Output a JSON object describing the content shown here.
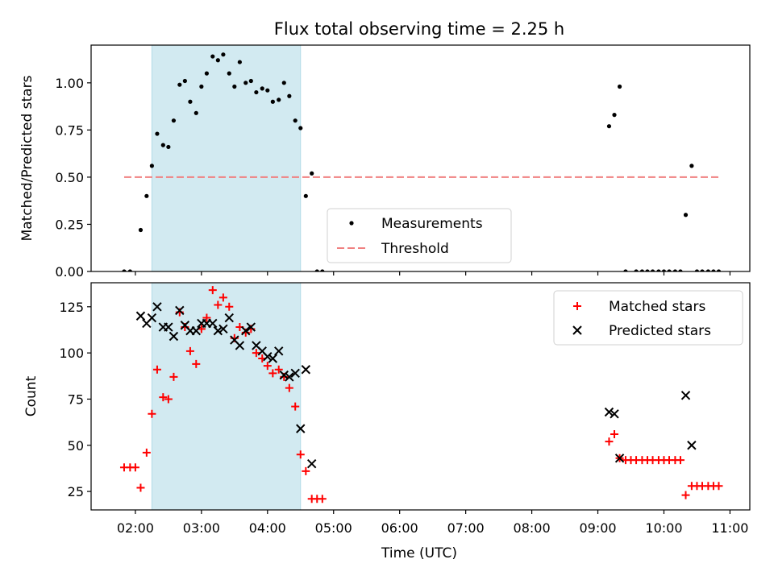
{
  "title": "Flux total observing time = 2.25 h",
  "x_ticks": [
    {
      "label": "02:00",
      "hour": 2
    },
    {
      "label": "03:00",
      "hour": 3
    },
    {
      "label": "04:00",
      "hour": 4
    },
    {
      "label": "05:00",
      "hour": 5
    },
    {
      "label": "06:00",
      "hour": 6
    },
    {
      "label": "07:00",
      "hour": 7
    },
    {
      "label": "08:00",
      "hour": 8
    },
    {
      "label": "09:00",
      "hour": 9
    },
    {
      "label": "10:00",
      "hour": 10
    },
    {
      "label": "11:00",
      "hour": 11
    }
  ],
  "xlabel": "Time (UTC)",
  "colors": {
    "measurement": "#000000",
    "threshold": "#f08080",
    "matched": "#ff0000",
    "predicted": "#000000",
    "highlight": "#add8e6"
  },
  "chart_data": [
    {
      "type": "scatter",
      "ylabel": "Matched/Predicted stars",
      "xlim": [
        1.33,
        11.3
      ],
      "ylim": [
        0,
        1.2
      ],
      "y_ticks": [
        "0.00",
        "0.25",
        "0.50",
        "0.75",
        "1.00"
      ],
      "highlight_span": {
        "x0": 2.25,
        "x1": 4.5
      },
      "threshold": {
        "value": 0.5,
        "x0": 1.83,
        "x1": 10.83
      },
      "legend": {
        "position": "lower-center",
        "entries": [
          "Measurements",
          "Threshold"
        ]
      },
      "series": [
        {
          "name": "Measurements",
          "x": [
            1.83,
            1.92,
            2.08,
            2.17,
            2.25,
            2.33,
            2.42,
            2.5,
            2.58,
            2.67,
            2.75,
            2.83,
            2.92,
            3.0,
            3.08,
            3.17,
            3.25,
            3.33,
            3.42,
            3.5,
            3.58,
            3.67,
            3.75,
            3.83,
            3.92,
            4.0,
            4.08,
            4.17,
            4.25,
            4.33,
            4.42,
            4.5,
            4.58,
            4.67,
            4.75,
            4.83,
            9.17,
            9.25,
            9.33,
            9.42,
            9.58,
            9.67,
            9.75,
            9.83,
            9.92,
            10.0,
            10.08,
            10.17,
            10.25,
            10.33,
            10.42,
            10.5,
            10.58,
            10.67,
            10.75,
            10.83
          ],
          "y": [
            0.0,
            0.0,
            0.22,
            0.4,
            0.56,
            0.73,
            0.67,
            0.66,
            0.8,
            0.99,
            1.01,
            0.9,
            0.84,
            0.98,
            1.05,
            1.14,
            1.12,
            1.15,
            1.05,
            0.98,
            1.11,
            1.0,
            1.01,
            0.95,
            0.97,
            0.96,
            0.9,
            0.91,
            1.0,
            0.93,
            0.8,
            0.76,
            0.4,
            0.52,
            0.0,
            0.0,
            0.77,
            0.83,
            0.98,
            0.0,
            0.0,
            0.0,
            0.0,
            0.0,
            0.0,
            0.0,
            0.0,
            0.0,
            0.0,
            0.3,
            0.56,
            0.0,
            0.0,
            0.0,
            0.0,
            0.0
          ]
        }
      ]
    },
    {
      "type": "scatter",
      "ylabel": "Count",
      "xlim": [
        1.33,
        11.3
      ],
      "ylim": [
        15,
        138
      ],
      "y_ticks": [
        "25",
        "50",
        "75",
        "100",
        "125"
      ],
      "highlight_span": {
        "x0": 2.25,
        "x1": 4.5
      },
      "legend": {
        "position": "top-right",
        "entries": [
          "Matched stars",
          "Predicted stars"
        ]
      },
      "series": [
        {
          "name": "Matched stars",
          "marker": "+",
          "x": [
            1.83,
            1.92,
            2.0,
            2.08,
            2.17,
            2.25,
            2.33,
            2.42,
            2.5,
            2.58,
            2.67,
            2.75,
            2.83,
            2.92,
            3.0,
            3.08,
            3.17,
            3.25,
            3.33,
            3.42,
            3.5,
            3.58,
            3.67,
            3.75,
            3.83,
            3.92,
            4.0,
            4.08,
            4.17,
            4.25,
            4.33,
            4.42,
            4.5,
            4.58,
            4.67,
            4.75,
            4.83,
            9.17,
            9.25,
            9.33,
            9.42,
            9.5,
            9.58,
            9.67,
            9.75,
            9.83,
            9.92,
            10.0,
            10.08,
            10.17,
            10.25,
            10.33,
            10.42,
            10.5,
            10.58,
            10.67,
            10.75,
            10.83
          ],
          "y": [
            38,
            38,
            38,
            27,
            46,
            67,
            91,
            76,
            75,
            87,
            122,
            114,
            101,
            94,
            113,
            119,
            134,
            126,
            130,
            125,
            108,
            114,
            111,
            113,
            100,
            97,
            93,
            89,
            91,
            87,
            81,
            71,
            45,
            36,
            21,
            21,
            21,
            52,
            56,
            43,
            42,
            42,
            42,
            42,
            42,
            42,
            42,
            42,
            42,
            42,
            42,
            23,
            28,
            28,
            28,
            28,
            28,
            28
          ]
        },
        {
          "name": "Predicted stars",
          "marker": "x",
          "x": [
            2.08,
            2.17,
            2.25,
            2.33,
            2.42,
            2.5,
            2.58,
            2.67,
            2.75,
            2.83,
            2.92,
            3.0,
            3.08,
            3.17,
            3.25,
            3.33,
            3.42,
            3.5,
            3.58,
            3.67,
            3.75,
            3.83,
            3.92,
            4.0,
            4.08,
            4.17,
            4.25,
            4.33,
            4.42,
            4.5,
            4.58,
            4.67,
            9.17,
            9.25,
            9.33,
            10.33,
            10.42
          ],
          "y": [
            120,
            116,
            119,
            125,
            114,
            114,
            109,
            123,
            115,
            112,
            112,
            116,
            116,
            116,
            112,
            113,
            119,
            107,
            104,
            112,
            114,
            104,
            101,
            98,
            97,
            101,
            88,
            87,
            89,
            59,
            91,
            40,
            68,
            67,
            43,
            77,
            50
          ]
        }
      ]
    }
  ]
}
